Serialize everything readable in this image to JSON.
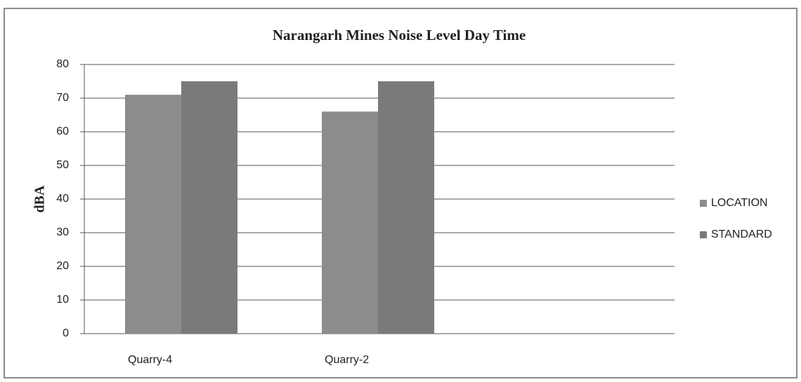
{
  "chart_data": {
    "type": "bar",
    "title": "Narangarh  Mines Noise Level Day Time",
    "y_label": "dBA",
    "categories": [
      "Quarry-4",
      "Quarry-2",
      null
    ],
    "series": [
      {
        "name": "LOCATION",
        "color": "#8c8c8c",
        "values": [
          71,
          66,
          null
        ]
      },
      {
        "name": "STANDARD",
        "color": "#7a7a7a",
        "values": [
          75,
          75,
          null
        ]
      }
    ],
    "ylim": [
      0,
      80
    ],
    "yticks": [
      0,
      10,
      20,
      30,
      40,
      50,
      60,
      70,
      80
    ],
    "grid": true,
    "legend": "right"
  }
}
